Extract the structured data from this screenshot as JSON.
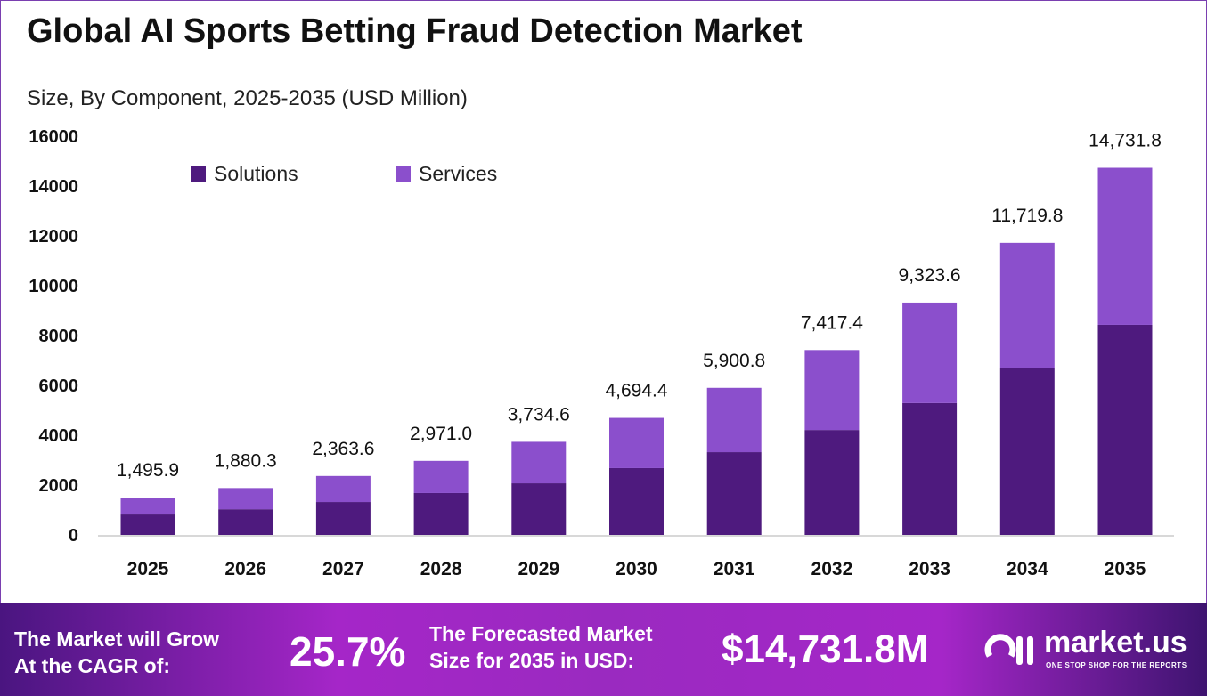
{
  "chart_data": {
    "type": "bar",
    "stacked": true,
    "title": "Global AI Sports Betting Fraud Detection Market",
    "subtitle": "Size, By Component, 2025-2035 (USD Million)",
    "categories": [
      "2025",
      "2026",
      "2027",
      "2028",
      "2029",
      "2030",
      "2031",
      "2032",
      "2033",
      "2034",
      "2035"
    ],
    "series": [
      {
        "name": "Solutions",
        "color": "#4e1a7e",
        "values": [
          820,
          1030,
          1320,
          1680,
          2070,
          2680,
          3320,
          4210,
          5290,
          6680,
          8430
        ]
      },
      {
        "name": "Services",
        "color": "#8b4fcc",
        "values": [
          675.9,
          850.3,
          1043.6,
          1291.0,
          1664.6,
          2014.4,
          2580.8,
          3207.4,
          4033.6,
          5039.8,
          6301.8
        ]
      }
    ],
    "totals": [
      "1,495.9",
      "1,880.3",
      "2,363.6",
      "2,971.0",
      "3,734.6",
      "4,694.4",
      "5,900.8",
      "7,417.4",
      "9,323.6",
      "11,719.8",
      "14,731.8"
    ],
    "total_values": [
      1495.9,
      1880.3,
      2363.6,
      2971.0,
      3734.6,
      4694.4,
      5900.8,
      7417.4,
      9323.6,
      11719.8,
      14731.8
    ],
    "yticks": [
      "0",
      "2000",
      "4000",
      "6000",
      "8000",
      "10000",
      "12000",
      "14000",
      "16000"
    ],
    "ylim": [
      0,
      16000
    ],
    "grid": false,
    "legend": "top-left"
  },
  "footer": {
    "cagr_label_1": "The Market will Grow",
    "cagr_label_2": "At the CAGR of:",
    "cagr_value": "25.7%",
    "forecast_label_1": "The Forecasted Market",
    "forecast_label_2": "Size for 2035 in USD:",
    "forecast_value": "$14,731.8M",
    "brand": "market.us",
    "tagline": "ONE STOP SHOP FOR THE REPORTS"
  }
}
